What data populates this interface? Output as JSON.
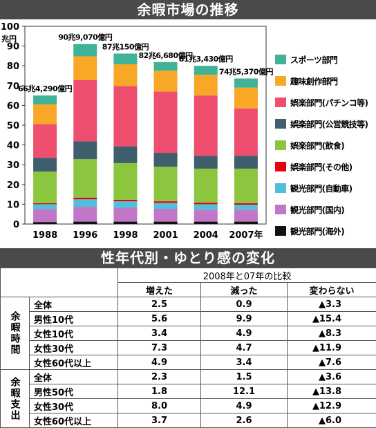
{
  "chart_data": {
    "type": "bar",
    "title": "余暇市場の推移",
    "ylabel": "兆円",
    "ylim": [
      0,
      100
    ],
    "yticks": [
      0,
      10,
      20,
      30,
      40,
      50,
      60,
      70,
      80,
      90,
      100
    ],
    "categories": [
      "1988",
      "1996",
      "1998",
      "2001",
      "2004",
      "2007年"
    ],
    "totals_labels": [
      "66兆4,290億円",
      "90兆9,070億円",
      "87兆150億円",
      "82兆6,680億円",
      "81兆3,430億円",
      "74兆5,370億円"
    ],
    "series": [
      {
        "name": "観光部門(海外)",
        "color": "#111111",
        "values": [
          1,
          1.2,
          1.2,
          1.2,
          1.2,
          1.2
        ]
      },
      {
        "name": "観光部門(国内)",
        "color": "#c177c8",
        "values": [
          6.5,
          7.5,
          7,
          6.5,
          6,
          6
        ]
      },
      {
        "name": "観光部門(自動車)",
        "color": "#4fc0d8",
        "values": [
          2.5,
          3.8,
          3.3,
          3,
          2.8,
          2.6
        ]
      },
      {
        "name": "娯楽部門(その他)",
        "color": "#e60012",
        "values": [
          0.5,
          0.8,
          0.8,
          0.8,
          0.8,
          0.7
        ]
      },
      {
        "name": "娯楽部門(飲食)",
        "color": "#8cc63f",
        "values": [
          16,
          19.5,
          18.5,
          17.5,
          17.2,
          17.5
        ]
      },
      {
        "name": "娯楽部門(公営競技等)",
        "color": "#3f5f6d",
        "values": [
          7,
          9,
          8.5,
          7,
          6.5,
          6.5
        ]
      },
      {
        "name": "娯楽部門(パチンコ等)",
        "color": "#ef4f6e",
        "values": [
          17,
          31,
          30.5,
          31,
          30.5,
          24
        ]
      },
      {
        "name": "趣味創作部門",
        "color": "#f8a826",
        "values": [
          10,
          12,
          11,
          10.5,
          10.5,
          10.5
        ]
      },
      {
        "name": "スポーツ部門",
        "color": "#3fb297",
        "values": [
          4.5,
          6.2,
          5.4,
          4.4,
          4.5,
          4.6
        ]
      }
    ]
  },
  "table": {
    "title": "性年代別・ゆとり感の変化",
    "compare_label": "2008年と07年の比較",
    "columns": [
      "増えた",
      "減った",
      "変わらない"
    ],
    "groups": [
      {
        "label": "余暇時間",
        "rows": [
          {
            "label": "全体",
            "values": [
              "2.5",
              "0.9",
              "▲3.3"
            ]
          },
          {
            "label": "男性10代",
            "values": [
              "5.6",
              "9.9",
              "▲15.4"
            ]
          },
          {
            "label": "女性10代",
            "values": [
              "3.4",
              "4.9",
              "▲8.3"
            ]
          },
          {
            "label": "女性30代",
            "values": [
              "7.3",
              "4.7",
              "▲11.9"
            ]
          },
          {
            "label": "女性60代以上",
            "values": [
              "4.9",
              "3.4",
              "▲7.6"
            ]
          }
        ]
      },
      {
        "label": "余暇支出",
        "rows": [
          {
            "label": "全体",
            "values": [
              "2.3",
              "1.5",
              "▲3.6"
            ]
          },
          {
            "label": "男性50代",
            "values": [
              "1.8",
              "12.1",
              "▲13.8"
            ]
          },
          {
            "label": "女性30代",
            "values": [
              "8.0",
              "4.9",
              "▲12.9"
            ]
          },
          {
            "label": "女性60代以上",
            "values": [
              "3.7",
              "2.6",
              "▲6.0"
            ]
          }
        ]
      }
    ]
  }
}
